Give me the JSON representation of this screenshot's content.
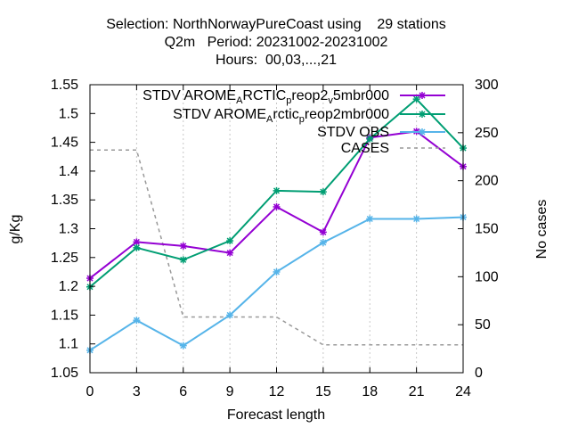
{
  "chart_data": {
    "type": "line",
    "title_lines": [
      "Selection: NorthNorwayPureCoast using    29 stations",
      "Q2m   Period: 20231002-20231002",
      "Hours:  00,03,...,21"
    ],
    "xlabel": "Forecast length",
    "ylabel": "g/Kg",
    "y2label": "No cases",
    "x": [
      0,
      3,
      6,
      9,
      12,
      15,
      18,
      21,
      24
    ],
    "xticks": [
      "0",
      "3",
      "6",
      "9",
      "12",
      "15",
      "18",
      "21",
      "24"
    ],
    "xlim": [
      0,
      24
    ],
    "ylim": [
      1.05,
      1.55
    ],
    "yticks": [
      "1.05",
      "1.1",
      "1.15",
      "1.2",
      "1.25",
      "1.3",
      "1.35",
      "1.4",
      "1.45",
      "1.5",
      "1.55"
    ],
    "y2lim": [
      0,
      300
    ],
    "y2ticks": [
      "0",
      "50",
      "100",
      "150",
      "200",
      "250",
      "300"
    ],
    "grid": "dashed vertical at x ticks 3-21",
    "legend_position": "top-right",
    "series": [
      {
        "legend": {
          "parts": [
            "STDV AROME",
            "A",
            "RCTIC",
            "p",
            "reop2",
            "v",
            "5mbr000"
          ],
          "sub": [
            1,
            3,
            5
          ]
        },
        "color": "#9400d3",
        "marker": "star",
        "axis": "y",
        "values": [
          1.214,
          1.277,
          1.27,
          1.258,
          1.338,
          1.294,
          1.458,
          1.469,
          1.408
        ]
      },
      {
        "legend": {
          "parts": [
            "STDV AROME",
            "A",
            "rctic",
            "p",
            "reop2mbr000"
          ],
          "sub": [
            1,
            3
          ]
        },
        "color": "#009e73",
        "marker": "star",
        "axis": "y",
        "values": [
          1.199,
          1.267,
          1.246,
          1.279,
          1.366,
          1.364,
          1.456,
          1.525,
          1.44
        ]
      },
      {
        "legend": {
          "parts": [
            "STDV OBS"
          ],
          "sub": []
        },
        "color": "#56b4e9",
        "marker": "star",
        "axis": "y",
        "values": [
          1.089,
          1.141,
          1.097,
          1.15,
          1.225,
          1.276,
          1.317,
          1.317,
          1.32
        ]
      },
      {
        "legend": {
          "parts": [
            "CASES"
          ],
          "sub": []
        },
        "color": "#999999",
        "marker": "none",
        "dashed": true,
        "axis": "y2",
        "values": [
          232,
          232,
          58,
          58,
          58,
          29,
          29,
          29,
          29
        ]
      }
    ]
  }
}
